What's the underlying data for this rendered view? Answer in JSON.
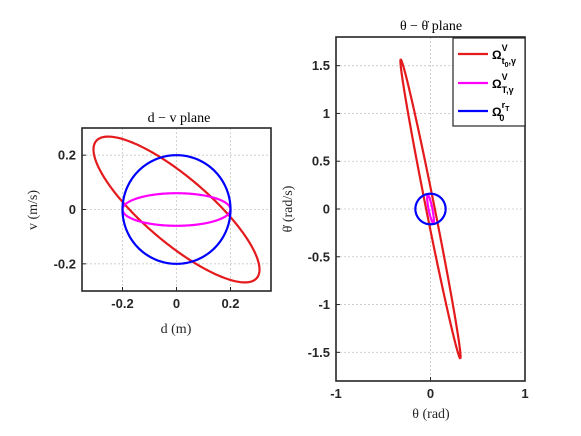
{
  "chart_data": [
    {
      "type": "line",
      "title": "d − v plane",
      "xlabel": "d (m)",
      "ylabel": "v (m/s)",
      "xlim": [
        -0.35,
        0.35
      ],
      "ylim": [
        -0.3,
        0.3
      ],
      "xticks": [
        -0.2,
        0,
        0.2
      ],
      "xtick_labels": [
        "-0.2",
        "0",
        "0.2"
      ],
      "yticks": [
        -0.2,
        0,
        0.2
      ],
      "ytick_labels": [
        "-0.2",
        "0",
        "0.2"
      ],
      "grid": true,
      "series": [
        {
          "color": "#e41a1c",
          "ellipse": {
            "cx": 0,
            "cy": 0,
            "radii": [
              0.39,
              0.12
            ],
            "angle_deg": -40.3
          },
          "extremes": {
            "x_range": [
              -0.31,
              0.31
            ],
            "y_range": [
              -0.27,
              0.27
            ]
          }
        },
        {
          "color": "#ff00ff",
          "ellipse": {
            "cx": 0,
            "cy": 0,
            "radii": [
              0.2,
              0.06
            ],
            "angle_deg": 0
          }
        },
        {
          "color": "#0000ff",
          "ellipse": {
            "cx": 0,
            "cy": 0,
            "radii": [
              0.2,
              0.2
            ],
            "angle_deg": 0
          }
        }
      ]
    },
    {
      "type": "line",
      "title": "θ − θ̇ plane",
      "xlabel": "θ (rad)",
      "ylabel": "θ̇ (rad/s)",
      "xlim": [
        -1,
        1
      ],
      "ylim": [
        -1.8,
        1.8
      ],
      "xticks": [
        -1,
        0,
        1
      ],
      "xtick_labels": [
        "-1",
        "0",
        "1"
      ],
      "yticks": [
        -1.5,
        -1,
        -0.5,
        0,
        0.5,
        1,
        1.5
      ],
      "ytick_labels": [
        "-1.5",
        "-1",
        "-0.5",
        "0",
        "0.5",
        "1",
        "1.5"
      ],
      "grid": true,
      "legend_position": "top-right",
      "series": [
        {
          "name": "Ω_{t0,γ}^V",
          "color": "#e41a1c",
          "ellipse": {
            "cx": 0,
            "cy": 0,
            "radii": [
              1.595,
              0.045
            ],
            "angle_deg": -78.6
          },
          "extremes": {
            "x_range": [
              -0.33,
              0.33
            ],
            "y_range": [
              -1.57,
              1.57
            ]
          }
        },
        {
          "name": "Ω_{T,γ}^V",
          "color": "#ff00ff",
          "ellipse": {
            "cx": 0,
            "cy": 0,
            "radii": [
              0.15,
              0.02
            ],
            "angle_deg": -78.6
          }
        },
        {
          "name": "Ω_T^r",
          "color": "#0000ff",
          "ellipse": {
            "cx": 0,
            "cy": 0,
            "radii": [
              0.16,
              0.16
            ],
            "angle_deg": 0
          }
        }
      ]
    }
  ]
}
